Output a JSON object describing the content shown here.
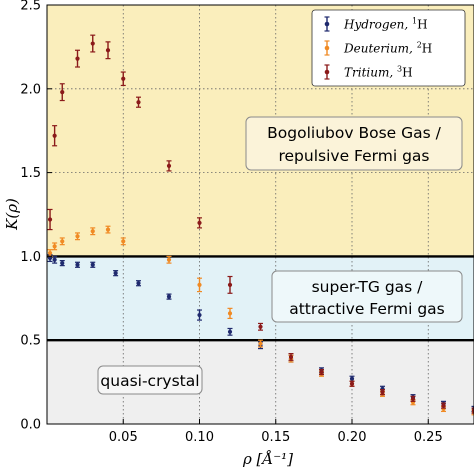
{
  "chart_data": {
    "type": "scatter",
    "xlabel": "ρ [Å⁻¹]",
    "ylabel": "K(ρ)",
    "xlim": [
      0.0,
      0.28
    ],
    "ylim": [
      0.0,
      2.5
    ],
    "xticks": [
      0.05,
      0.1,
      0.15,
      0.2,
      0.25
    ],
    "xtick_labels": [
      "0.05",
      "0.10",
      "0.15",
      "0.20",
      "0.25"
    ],
    "yticks": [
      0.0,
      0.5,
      1.0,
      1.5,
      2.0,
      2.5
    ],
    "ytick_labels": [
      "0.0",
      "0.5",
      "1.0",
      "1.5",
      "2.0",
      "2.5"
    ],
    "grid": true,
    "legend_position": "top-right",
    "regions": [
      {
        "name": "bogoliubov",
        "y_range": [
          1.0,
          2.5
        ],
        "color": "#faeebc",
        "label_lines": [
          "Bogoliubov Bose Gas /",
          "repulsive Fermi gas"
        ]
      },
      {
        "name": "super-tg",
        "y_range": [
          0.5,
          1.0
        ],
        "color": "#e2f2f7",
        "label_lines": [
          "super-TG gas /",
          "attractive Fermi gas"
        ]
      },
      {
        "name": "quasi-crystal",
        "y_range": [
          0.0,
          0.5
        ],
        "color": "#efefef",
        "label_lines": [
          "quasi-crystal"
        ]
      }
    ],
    "hlines": [
      1.0,
      0.5
    ],
    "series": [
      {
        "name": "Hydrogen, ¹H",
        "name_main": "Hydrogen,",
        "name_sup": "1",
        "name_elem": "H",
        "color": "#1f2a6e",
        "x": [
          0.002,
          0.005,
          0.01,
          0.02,
          0.03,
          0.045,
          0.06,
          0.08,
          0.1,
          0.12,
          0.14,
          0.16,
          0.18,
          0.2,
          0.22,
          0.24,
          0.26,
          0.28
        ],
        "y": [
          0.99,
          0.98,
          0.96,
          0.95,
          0.95,
          0.9,
          0.84,
          0.76,
          0.65,
          0.55,
          0.47,
          0.39,
          0.32,
          0.27,
          0.21,
          0.16,
          0.12,
          0.09
        ],
        "err": [
          0.02,
          0.02,
          0.015,
          0.015,
          0.015,
          0.015,
          0.015,
          0.015,
          0.03,
          0.02,
          0.02,
          0.02,
          0.015,
          0.015,
          0.015,
          0.015,
          0.015,
          0.015
        ]
      },
      {
        "name": "Deuterium, ²H",
        "name_main": "Deuterium,",
        "name_sup": "2",
        "name_elem": "H",
        "color": "#f08a24",
        "x": [
          0.002,
          0.005,
          0.01,
          0.02,
          0.03,
          0.04,
          0.05,
          0.08,
          0.1,
          0.12,
          0.14,
          0.16,
          0.18,
          0.2,
          0.22,
          0.24,
          0.26,
          0.28
        ],
        "y": [
          1.02,
          1.06,
          1.09,
          1.12,
          1.15,
          1.16,
          1.09,
          0.98,
          0.83,
          0.66,
          0.48,
          0.39,
          0.3,
          0.24,
          0.18,
          0.13,
          0.09,
          0.07
        ],
        "err": [
          0.02,
          0.02,
          0.02,
          0.02,
          0.02,
          0.02,
          0.02,
          0.02,
          0.04,
          0.03,
          0.02,
          0.02,
          0.015,
          0.015,
          0.015,
          0.015,
          0.015,
          0.015
        ]
      },
      {
        "name": "Tritium, ³H",
        "name_main": "Tritium,",
        "name_sup": "3",
        "name_elem": "H",
        "color": "#8b1a1a",
        "x": [
          0.002,
          0.005,
          0.01,
          0.02,
          0.03,
          0.04,
          0.05,
          0.06,
          0.08,
          0.1,
          0.12,
          0.14,
          0.16,
          0.18,
          0.2,
          0.22,
          0.24,
          0.26,
          0.28
        ],
        "y": [
          1.22,
          1.72,
          1.98,
          2.18,
          2.27,
          2.23,
          2.06,
          1.92,
          1.54,
          1.2,
          0.83,
          0.58,
          0.4,
          0.31,
          0.24,
          0.19,
          0.15,
          0.11,
          0.08
        ],
        "err": [
          0.06,
          0.06,
          0.05,
          0.05,
          0.05,
          0.05,
          0.04,
          0.03,
          0.03,
          0.03,
          0.05,
          0.02,
          0.02,
          0.015,
          0.015,
          0.015,
          0.015,
          0.015,
          0.015
        ]
      }
    ]
  }
}
